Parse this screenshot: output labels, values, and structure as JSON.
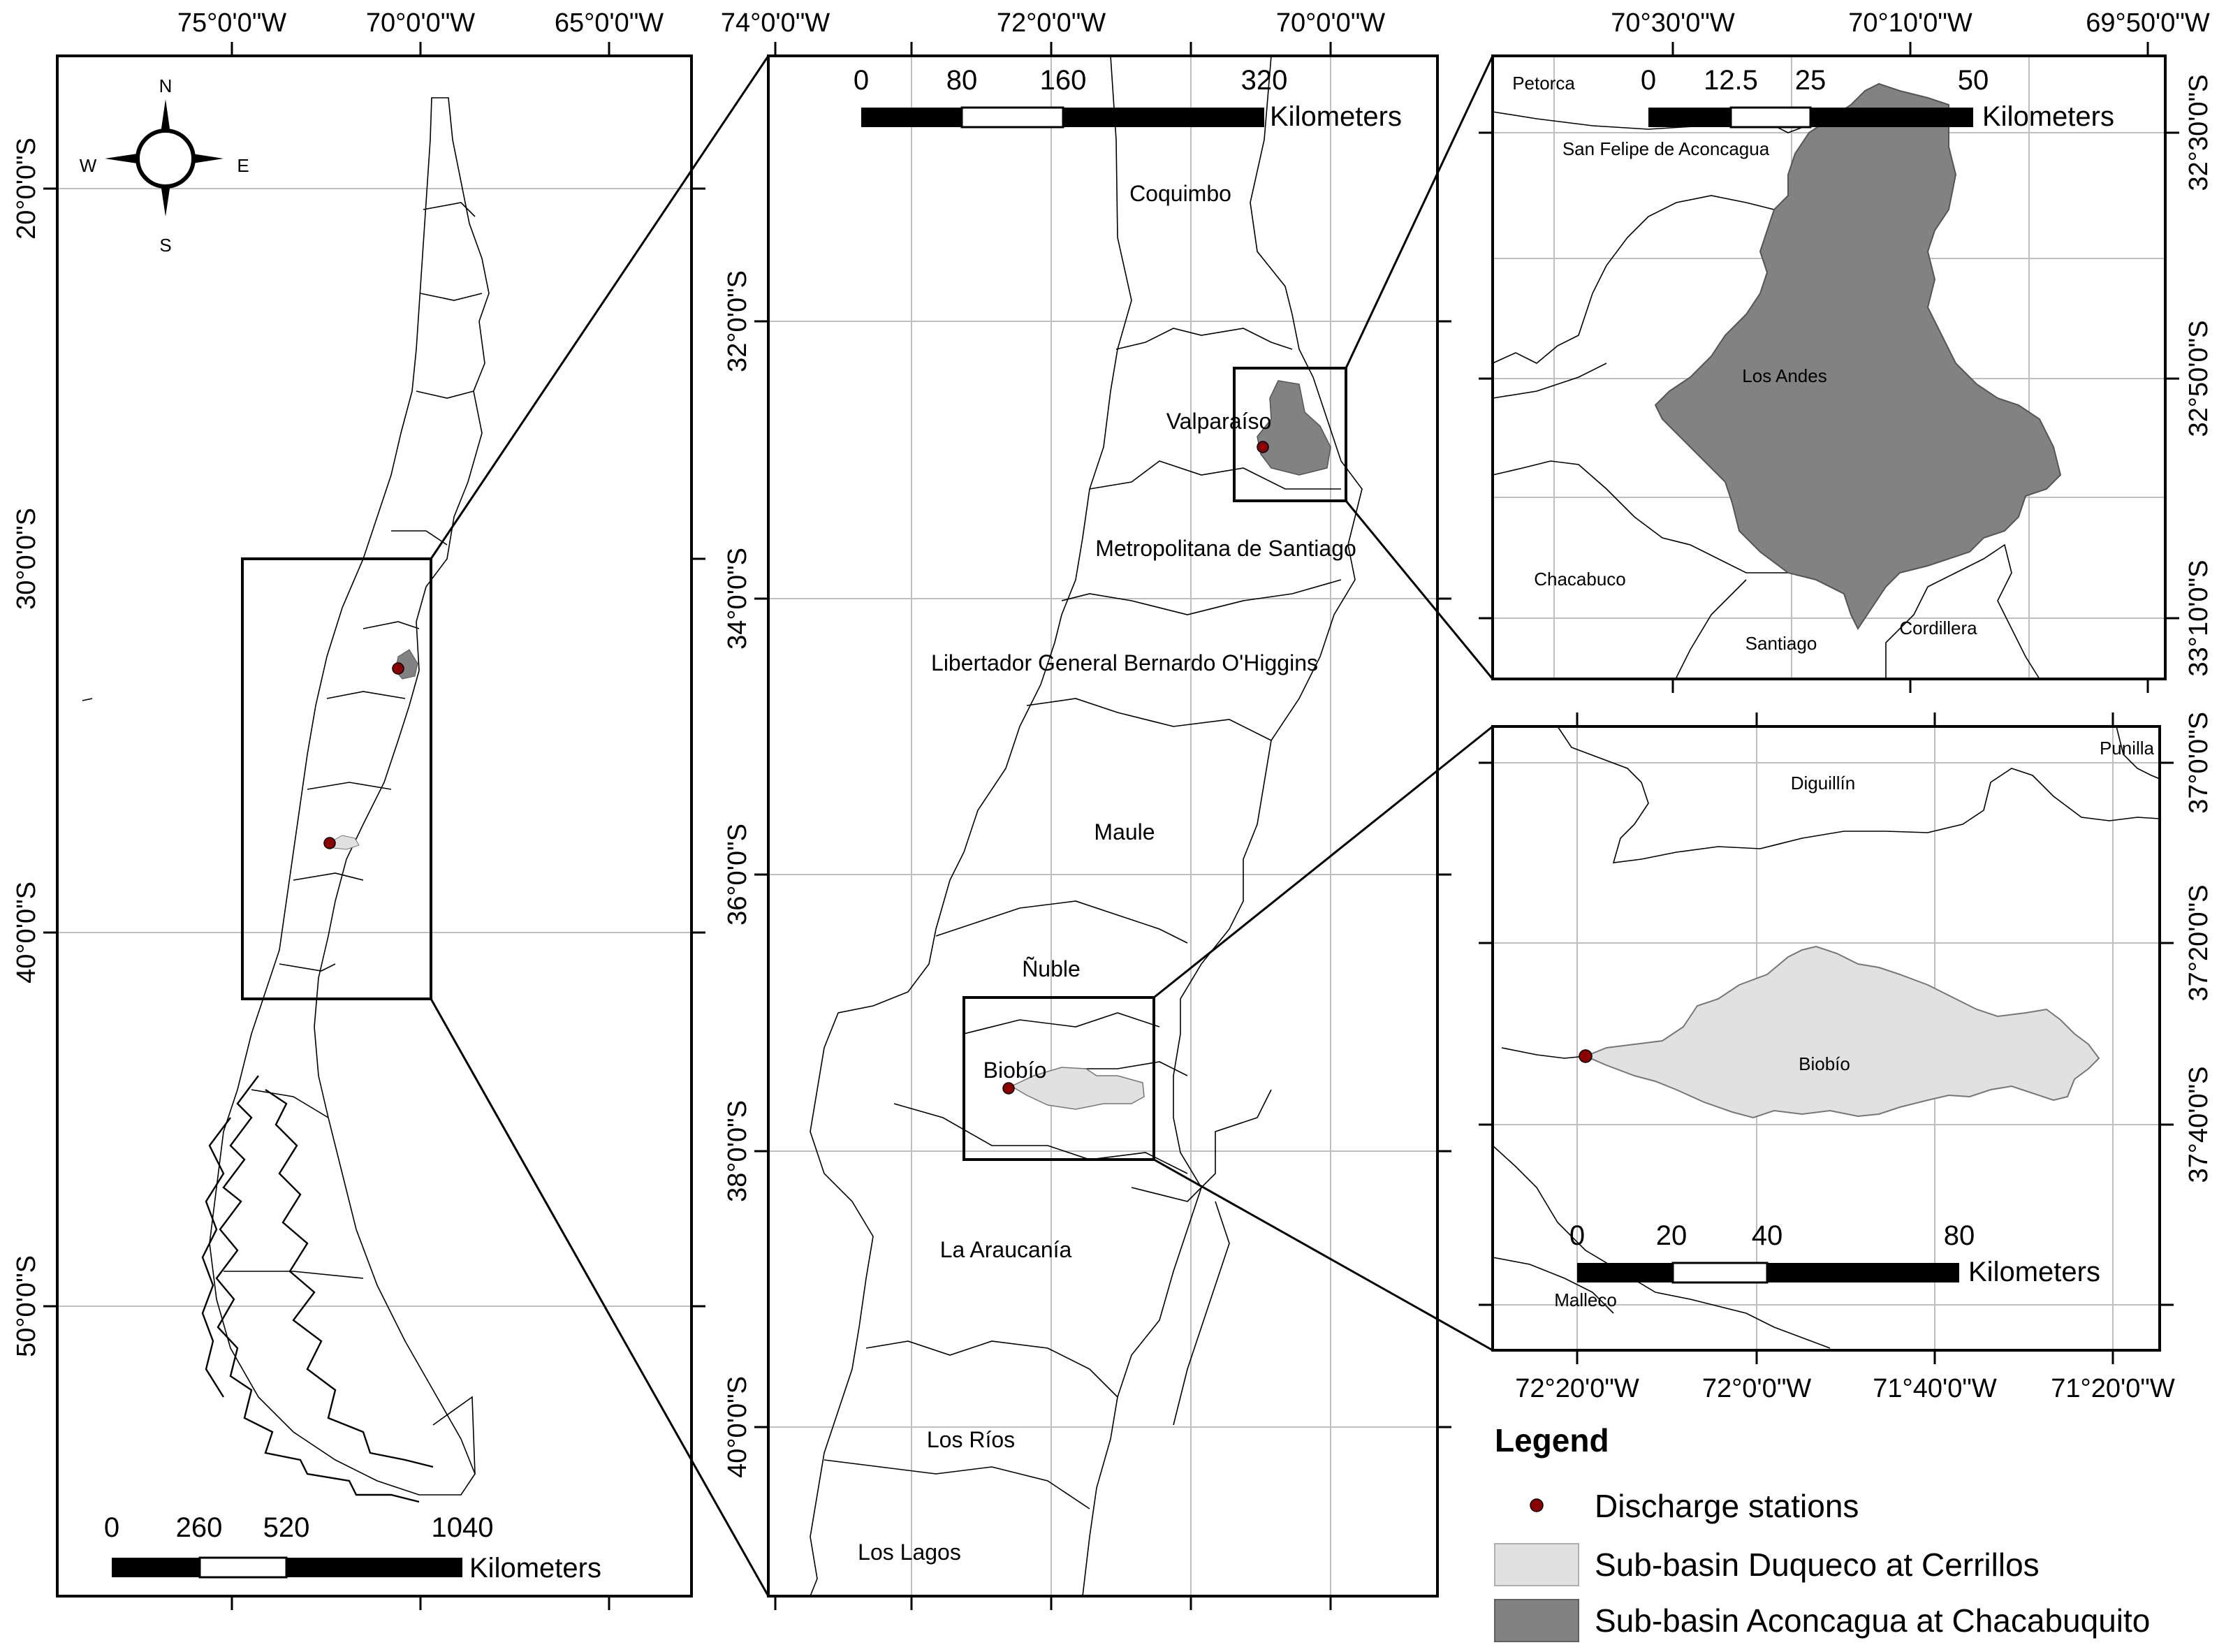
{
  "panel_left": {
    "top_lon_labels": [
      "75°0'0\"W",
      "70°0'0\"W",
      "65°0'0\"W"
    ],
    "left_lat_labels": [
      "20°0'0\"S",
      "30°0'0\"S",
      "40°0'0\"S",
      "50°0'0\"S"
    ],
    "compass": {
      "n": "N",
      "s": "S",
      "e": "E",
      "w": "W"
    },
    "scale": {
      "ticks": [
        "0",
        "260",
        "520",
        "1040"
      ],
      "unit": "Kilometers"
    }
  },
  "panel_middle": {
    "top_lon_labels": [
      "74°0'0\"W",
      "72°0'0\"W",
      "70°0'0\"W"
    ],
    "left_lat_labels": [
      "32°0'0\"S",
      "34°0'0\"S",
      "36°0'0\"S",
      "38°0'0\"S",
      "40°0'0\"S"
    ],
    "scale": {
      "ticks": [
        "0",
        "80",
        "160",
        "320"
      ],
      "unit": "Kilometers"
    },
    "regions": [
      "Coquimbo",
      "Valparaíso",
      "Metropolitana de Santiago",
      "Libertador General Bernardo O'Higgins",
      "Maule",
      "Ñuble",
      "Biobío",
      "La Araucanía",
      "Los Ríos",
      "Los Lagos"
    ]
  },
  "panel_top_right": {
    "top_lon_labels": [
      "70°30'0\"W",
      "70°10'0\"W",
      "69°50'0\"W"
    ],
    "right_lat_labels": [
      "32°30'0\"S",
      "32°50'0\"S",
      "33°10'0\"S"
    ],
    "scale": {
      "ticks": [
        "0",
        "12.5",
        "25",
        "50"
      ],
      "unit": "Kilometers"
    },
    "regions": [
      "Petorca",
      "San Felipe de Aconcagua",
      "Los Andes",
      "Chacabuco",
      "Santiago",
      "Cordillera"
    ]
  },
  "panel_bottom_right": {
    "bottom_lon_labels": [
      "72°20'0\"W",
      "72°0'0\"W",
      "71°40'0\"W",
      "71°20'0\"W"
    ],
    "right_lat_labels": [
      "37°0'0\"S",
      "37°20'0\"S",
      "37°40'0\"S"
    ],
    "scale": {
      "ticks": [
        "0",
        "20",
        "40",
        "80"
      ],
      "unit": "Kilometers"
    },
    "regions": [
      "Diguillín",
      "Punilla",
      "Biobío",
      "Malleco"
    ]
  },
  "legend": {
    "title": "Legend",
    "items": [
      {
        "label": "Discharge stations",
        "symbol": "station-dot",
        "color": "#8b0000"
      },
      {
        "label": "Sub-basin Duqueco at Cerrillos",
        "symbol": "light-polygon",
        "color": "#e1e1e1"
      },
      {
        "label": "Sub-basin Aconcagua at Chacabuquito",
        "symbol": "dark-polygon",
        "color": "#828282"
      }
    ]
  },
  "colors": {
    "station": "#8b0000",
    "light_basin": "#e1e1e1",
    "dark_basin": "#828282",
    "grid": "#bfbfbf"
  }
}
